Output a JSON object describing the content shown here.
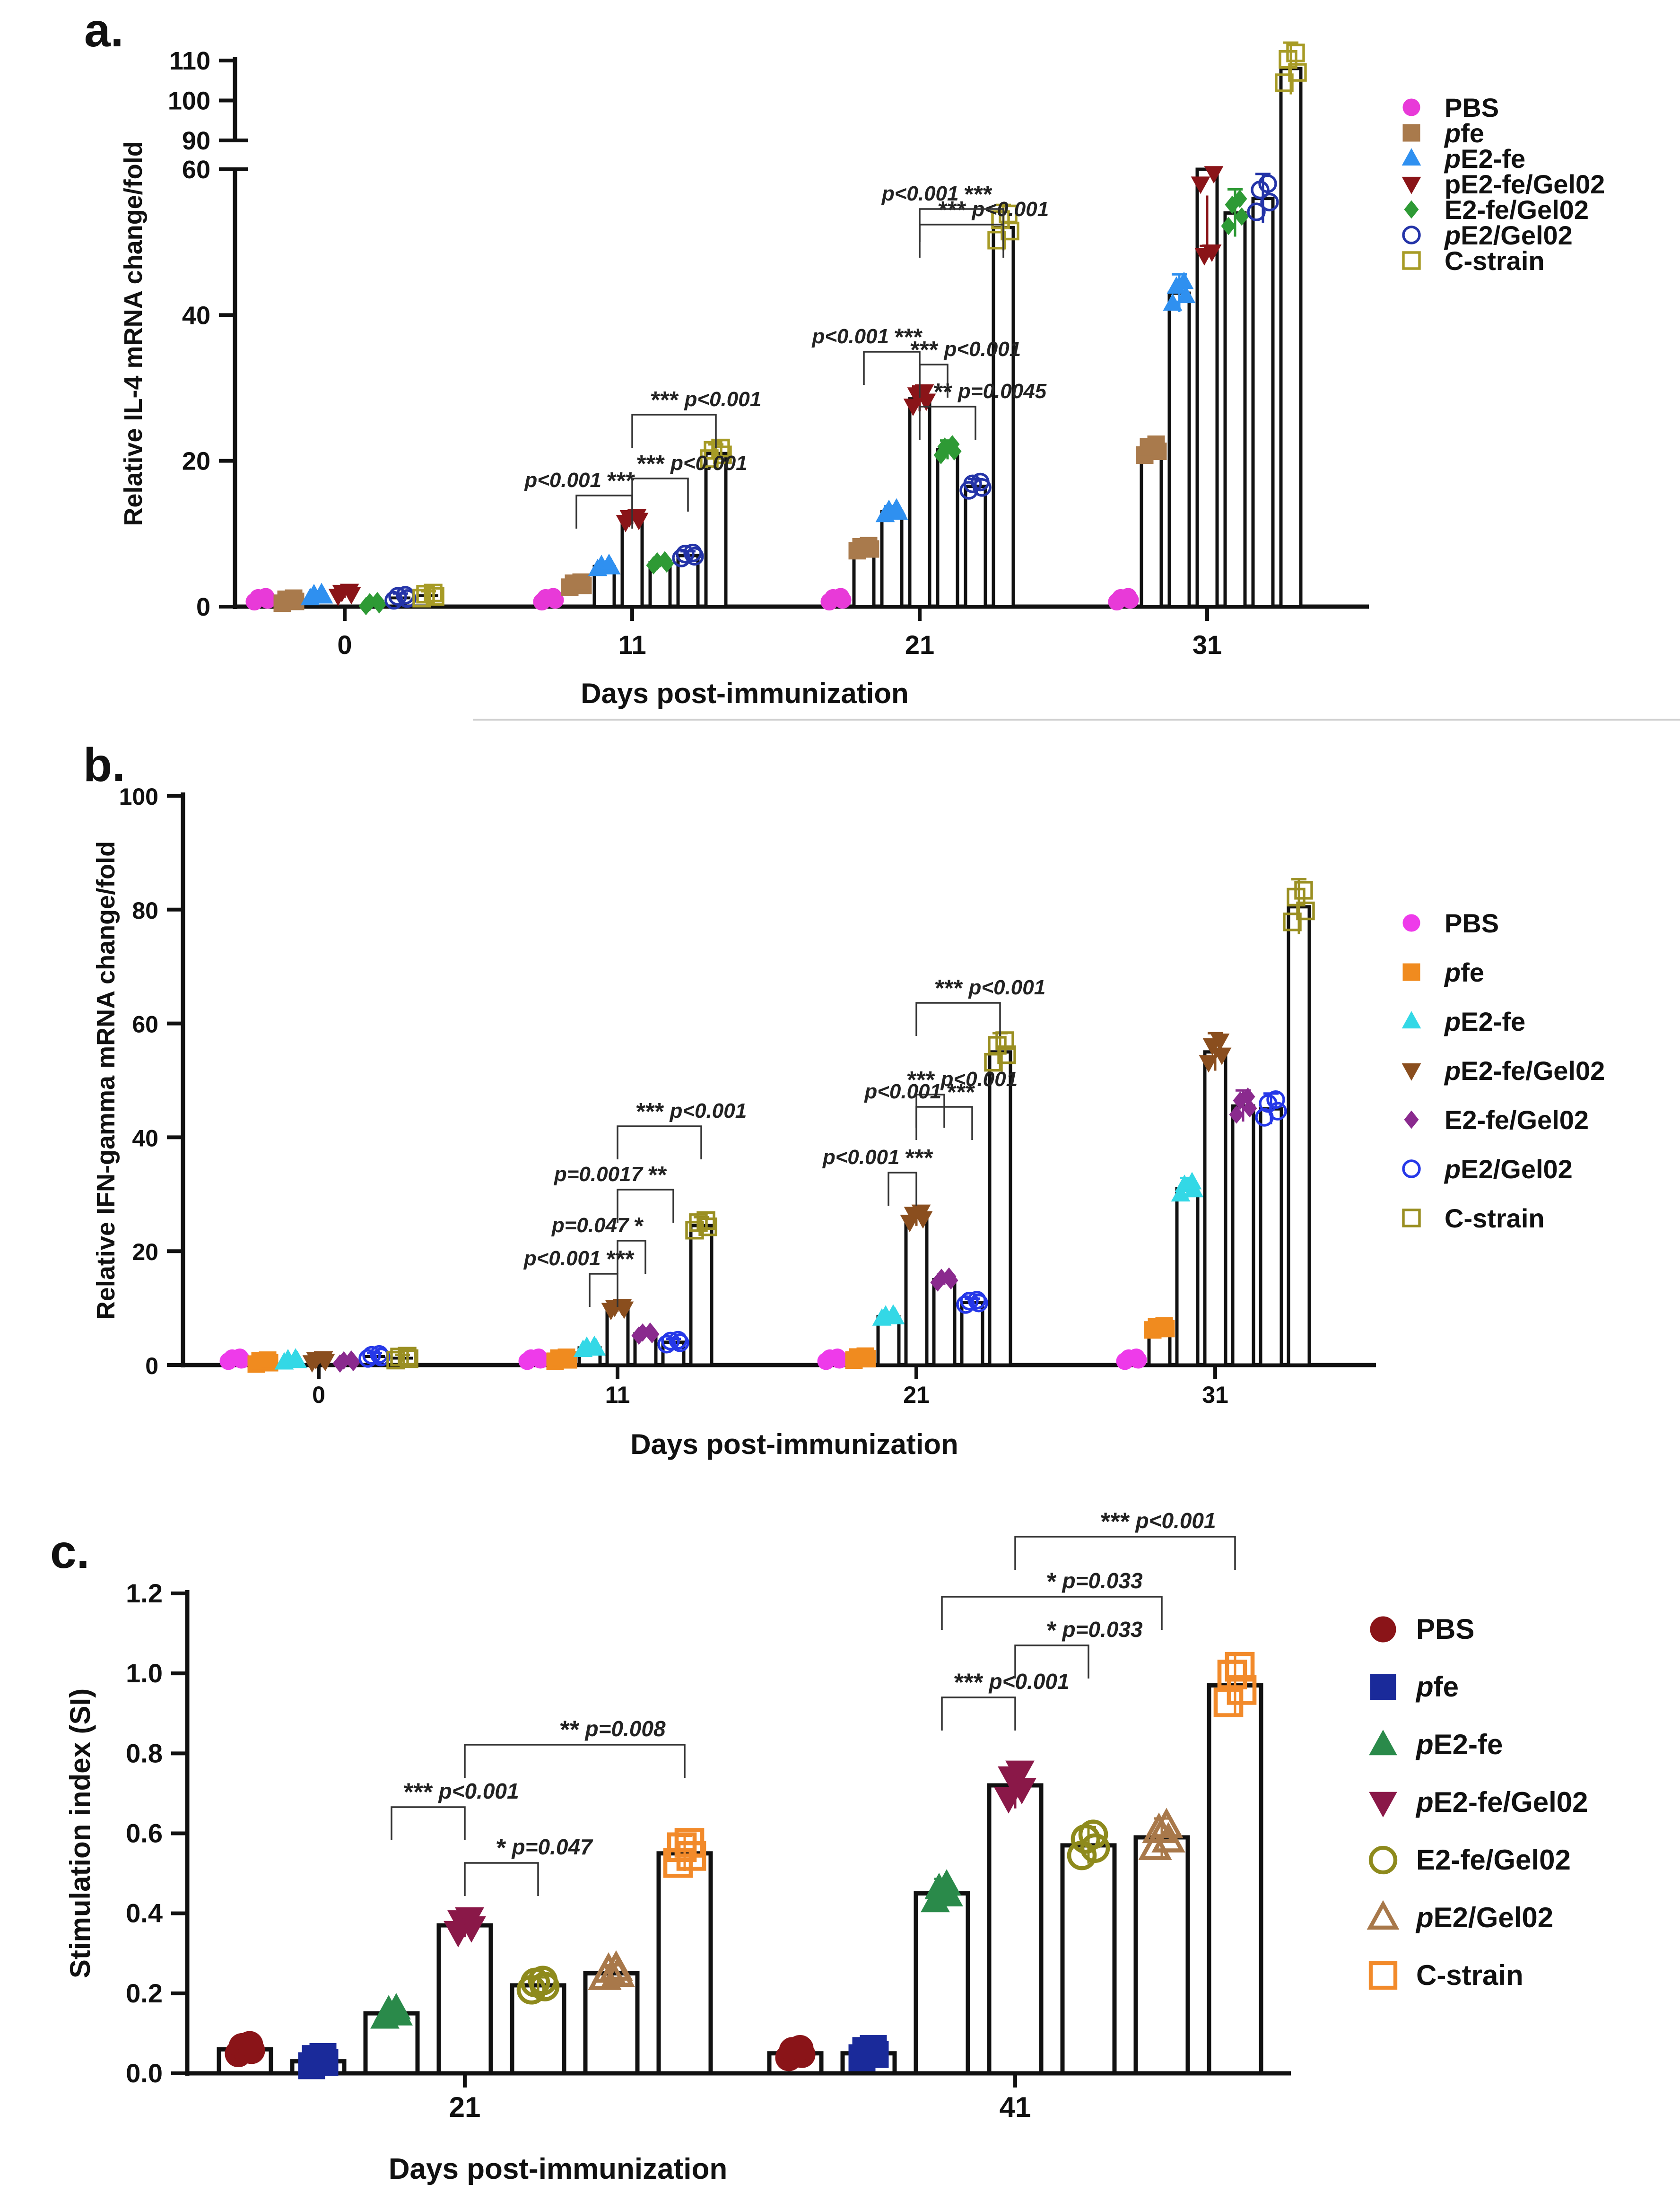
{
  "colors": {
    "a": {
      "PBS": "#e83ad8",
      "pfe": "#a97a4c",
      "pE2-fe": "#2f90f0",
      "pE2-fe/Gel02": "#8a1418",
      "E2-fe/Gel02": "#2e9a35",
      "pE2/Gel02": "#2434a8",
      "C-strain": "#a79b26"
    },
    "b": {
      "PBS": "#ee3bea",
      "pfe": "#f08b1f",
      "pE2-fe": "#33d8e6",
      "pE2-fe/Gel02": "#8a4e1e",
      "E2-fe/Gel02": "#8a2a8e",
      "pE2/Gel02": "#2638e8",
      "C-strain": "#9a8f22"
    },
    "c": {
      "PBS": "#8a1418",
      "pfe": "#1a2a9a",
      "pE2-fe": "#2a8a4a",
      "pE2-fe/Gel02": "#8a1848",
      "E2-fe/Gel02": "#8e8a1c",
      "pE2/Gel02": "#a8784a",
      "C-strain": "#f28a2a"
    }
  },
  "chart_data": [
    {
      "panel_label": "a.",
      "type": "bar",
      "ylabel": "Relative IL-4 mRNA change/fold",
      "xlabel": "Days post-immunization",
      "categories": [
        "0",
        "11",
        "21",
        "31"
      ],
      "yticks_lower": [
        "0",
        "20",
        "40",
        "60"
      ],
      "yticks_upper": [
        "90",
        "100",
        "110"
      ],
      "ylim_lower": [
        0,
        60
      ],
      "ylim_upper": [
        90,
        110
      ],
      "legend": [
        {
          "name": "PBS",
          "prefix": "",
          "rest": "PBS",
          "marker": "circle-filled"
        },
        {
          "name": "pfe",
          "prefix": "p",
          "rest": "fe",
          "marker": "square-filled"
        },
        {
          "name": "pE2-fe",
          "prefix": "p",
          "rest": "E2-fe",
          "marker": "triangle-up-filled"
        },
        {
          "name": "pE2-fe/Gel02",
          "prefix": "",
          "rest": "pE2-fe/Gel02",
          "marker": "triangle-down-filled"
        },
        {
          "name": "E2-fe/Gel02",
          "prefix": "",
          "rest": "E2-fe/Gel02",
          "marker": "diamond-filled"
        },
        {
          "name": "pE2/Gel02",
          "prefix": "p",
          "rest": "E2/Gel02",
          "marker": "circle-open"
        },
        {
          "name": "C-strain",
          "prefix": "",
          "rest": "C-strain",
          "marker": "square-open"
        }
      ],
      "series": [
        {
          "name": "PBS",
          "values": [
            1,
            1,
            1,
            1
          ]
        },
        {
          "name": "pfe",
          "values": [
            0.8,
            3,
            8,
            21.5
          ]
        },
        {
          "name": "pE2-fe",
          "values": [
            1.5,
            5.5,
            13,
            43
          ]
        },
        {
          "name": "pE2-fe/Gel02",
          "values": [
            1.8,
            12,
            28.5,
            60
          ]
        },
        {
          "name": "E2-fe/Gel02",
          "values": [
            0.4,
            6,
            21.5,
            54
          ]
        },
        {
          "name": "pE2/Gel02",
          "values": [
            1.2,
            7,
            16.5,
            56
          ]
        },
        {
          "name": "C-strain",
          "values": [
            1.5,
            21,
            52,
            108
          ]
        }
      ],
      "annotations": [
        {
          "day": "11",
          "g1": 3,
          "g2": 6,
          "stars": "***",
          "p": "p<0.001",
          "label_side": "right"
        },
        {
          "day": "11",
          "g1": 1,
          "g2": 3,
          "stars": "***",
          "p": "p<0.001",
          "label_side": "left"
        },
        {
          "day": "11",
          "g1": 3,
          "g2": 5,
          "stars": "***",
          "p": "p<0.001",
          "label_side": "right"
        },
        {
          "day": "21",
          "g1": 3,
          "g2": 6,
          "stars": "***",
          "p": "p<0.001",
          "label_side": "right"
        },
        {
          "day": "21",
          "g1": 3,
          "g2": 6,
          "stars": "***",
          "p": "p<0.001",
          "label_side": "left"
        },
        {
          "day": "21",
          "g1": 1,
          "g2": 3,
          "stars": "***",
          "p": "p<0.001",
          "label_side": "left"
        },
        {
          "day": "21",
          "g1": 3,
          "g2": 4,
          "stars": "***",
          "p": "p<0.001",
          "label_side": "right"
        },
        {
          "day": "21",
          "g1": 3,
          "g2": 5,
          "stars": "**",
          "p": "p=0.0045",
          "label_side": "right"
        }
      ]
    },
    {
      "panel_label": "b.",
      "type": "bar",
      "ylabel": "Relative IFN-gamma mRNA change/fold",
      "xlabel": "Days post-immunization",
      "categories": [
        "0",
        "11",
        "21",
        "31"
      ],
      "yticks": [
        "0",
        "20",
        "40",
        "60",
        "80",
        "100"
      ],
      "ylim": [
        0,
        100
      ],
      "legend": [
        {
          "name": "PBS",
          "prefix": "",
          "rest": "PBS",
          "marker": "circle-filled"
        },
        {
          "name": "pfe",
          "prefix": "p",
          "rest": "fe",
          "marker": "square-filled"
        },
        {
          "name": "pE2-fe",
          "prefix": "p",
          "rest": "E2-fe",
          "marker": "triangle-up-filled"
        },
        {
          "name": "pE2-fe/Gel02",
          "prefix": "p",
          "rest": "E2-fe/Gel02",
          "marker": "triangle-down-filled"
        },
        {
          "name": "E2-fe/Gel02",
          "prefix": "",
          "rest": "E2-fe/Gel02",
          "marker": "diamond-filled"
        },
        {
          "name": "pE2/Gel02",
          "prefix": "p",
          "rest": "E2/Gel02",
          "marker": "circle-open"
        },
        {
          "name": "C-strain",
          "prefix": "",
          "rest": "C-strain",
          "marker": "square-open"
        }
      ],
      "series": [
        {
          "name": "PBS",
          "values": [
            1,
            1,
            1,
            1
          ]
        },
        {
          "name": "pfe",
          "values": [
            0.5,
            1,
            1.2,
            6.5
          ]
        },
        {
          "name": "pE2-fe",
          "values": [
            0.8,
            3,
            8.5,
            31
          ]
        },
        {
          "name": "pE2-fe/Gel02",
          "values": [
            0.8,
            10,
            26,
            55
          ]
        },
        {
          "name": "E2-fe/Gel02",
          "values": [
            0.6,
            5.5,
            15,
            45.5
          ]
        },
        {
          "name": "pE2/Gel02",
          "values": [
            1.5,
            4,
            11,
            45
          ]
        },
        {
          "name": "C-strain",
          "values": [
            1.2,
            24.5,
            55,
            80.5
          ]
        }
      ],
      "annotations": [
        {
          "day": "11",
          "g1": 3,
          "g2": 6,
          "stars": "***",
          "p": "p<0.001",
          "label_side": "right"
        },
        {
          "day": "11",
          "g1": 3,
          "g2": 5,
          "stars": "**",
          "p": "p=0.0017",
          "label_side": "left"
        },
        {
          "day": "11",
          "g1": 3,
          "g2": 4,
          "stars": "*",
          "p": "p=0.047",
          "label_side": "left"
        },
        {
          "day": "11",
          "g1": 2,
          "g2": 3,
          "stars": "***",
          "p": "p<0.001",
          "label_side": "left"
        },
        {
          "day": "21",
          "g1": 3,
          "g2": 6,
          "stars": "***",
          "p": "p<0.001",
          "label_side": "right"
        },
        {
          "day": "21",
          "g1": 3,
          "g2": 4,
          "stars": "***",
          "p": "p<0.001",
          "label_side": "right"
        },
        {
          "day": "21",
          "g1": 3,
          "g2": 5,
          "stars": "***",
          "p": "p<0.001",
          "label_side": "left"
        },
        {
          "day": "21",
          "g1": 2,
          "g2": 3,
          "stars": "***",
          "p": "p<0.001",
          "label_side": "left"
        }
      ]
    },
    {
      "panel_label": "c.",
      "type": "bar",
      "ylabel": "Stimulation index (SI)",
      "xlabel": "Days post-immunization",
      "categories": [
        "21",
        "41"
      ],
      "yticks": [
        "0.0",
        "0.2",
        "0.4",
        "0.6",
        "0.8",
        "1.0",
        "1.2"
      ],
      "ylim": [
        0,
        1.2
      ],
      "legend": [
        {
          "name": "PBS",
          "prefix": "",
          "rest": "PBS",
          "marker": "circle-filled"
        },
        {
          "name": "pfe",
          "prefix": "p",
          "rest": "fe",
          "marker": "square-filled"
        },
        {
          "name": "pE2-fe",
          "prefix": "p",
          "rest": "E2-fe",
          "marker": "triangle-up-filled"
        },
        {
          "name": "pE2-fe/Gel02",
          "prefix": "p",
          "rest": "E2-fe/Gel02",
          "marker": "triangle-down-filled"
        },
        {
          "name": "E2-fe/Gel02",
          "prefix": "",
          "rest": "E2-fe/Gel02",
          "marker": "circle-open"
        },
        {
          "name": "pE2/Gel02",
          "prefix": "p",
          "rest": "E2/Gel02",
          "marker": "triangle-up-open"
        },
        {
          "name": "C-strain",
          "prefix": "",
          "rest": "C-strain",
          "marker": "square-open"
        }
      ],
      "series": [
        {
          "name": "PBS",
          "values": [
            0.06,
            0.05
          ]
        },
        {
          "name": "pfe",
          "values": [
            0.03,
            0.05
          ]
        },
        {
          "name": "pE2-fe",
          "values": [
            0.15,
            0.45
          ]
        },
        {
          "name": "pE2-fe/Gel02",
          "values": [
            0.37,
            0.72
          ]
        },
        {
          "name": "E2-fe/Gel02",
          "values": [
            0.22,
            0.57
          ]
        },
        {
          "name": "pE2/Gel02",
          "values": [
            0.25,
            0.59
          ]
        },
        {
          "name": "C-strain",
          "values": [
            0.55,
            0.97
          ]
        }
      ],
      "annotations": [
        {
          "day": "21",
          "g1": 3,
          "g2": 6,
          "stars": "**",
          "p": "p=0.008",
          "label_side": "right"
        },
        {
          "day": "21",
          "g1": 2,
          "g2": 3,
          "stars": "***",
          "p": "p<0.001",
          "label_side": "right"
        },
        {
          "day": "21",
          "g1": 3,
          "g2": 4,
          "stars": "*",
          "p": "p=0.047",
          "label_side": "right"
        },
        {
          "day": "41",
          "g1": 3,
          "g2": 6,
          "stars": "***",
          "p": "p<0.001",
          "label_side": "right"
        },
        {
          "day": "41",
          "g1": 2,
          "g2": 5,
          "stars": "*",
          "p": "p=0.033",
          "label_side": "right"
        },
        {
          "day": "41",
          "g1": 3,
          "g2": 4,
          "stars": "*",
          "p": "p=0.033",
          "label_side": "right"
        },
        {
          "day": "41",
          "g1": 2,
          "g2": 3,
          "stars": "***",
          "p": "p<0.001",
          "label_side": "right"
        }
      ]
    }
  ]
}
